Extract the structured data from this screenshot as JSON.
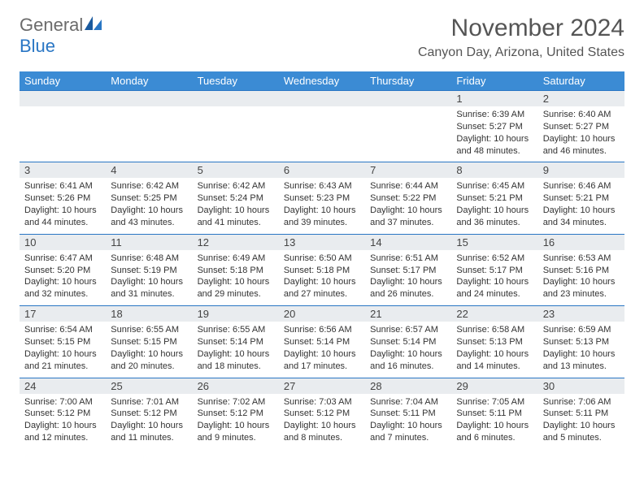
{
  "logo": {
    "word1": "General",
    "word2": "Blue"
  },
  "title": "November 2024",
  "location": "Canyon Day, Arizona, United States",
  "colors": {
    "header_bg": "#3b8bd4",
    "border": "#2976c4",
    "daynum_bg": "#e9ecef",
    "text": "#333333",
    "title_text": "#555555"
  },
  "weekdays": [
    "Sunday",
    "Monday",
    "Tuesday",
    "Wednesday",
    "Thursday",
    "Friday",
    "Saturday"
  ],
  "weeks": [
    [
      {
        "num": "",
        "sunrise": "",
        "sunset": "",
        "daylight": ""
      },
      {
        "num": "",
        "sunrise": "",
        "sunset": "",
        "daylight": ""
      },
      {
        "num": "",
        "sunrise": "",
        "sunset": "",
        "daylight": ""
      },
      {
        "num": "",
        "sunrise": "",
        "sunset": "",
        "daylight": ""
      },
      {
        "num": "",
        "sunrise": "",
        "sunset": "",
        "daylight": ""
      },
      {
        "num": "1",
        "sunrise": "Sunrise: 6:39 AM",
        "sunset": "Sunset: 5:27 PM",
        "daylight": "Daylight: 10 hours and 48 minutes."
      },
      {
        "num": "2",
        "sunrise": "Sunrise: 6:40 AM",
        "sunset": "Sunset: 5:27 PM",
        "daylight": "Daylight: 10 hours and 46 minutes."
      }
    ],
    [
      {
        "num": "3",
        "sunrise": "Sunrise: 6:41 AM",
        "sunset": "Sunset: 5:26 PM",
        "daylight": "Daylight: 10 hours and 44 minutes."
      },
      {
        "num": "4",
        "sunrise": "Sunrise: 6:42 AM",
        "sunset": "Sunset: 5:25 PM",
        "daylight": "Daylight: 10 hours and 43 minutes."
      },
      {
        "num": "5",
        "sunrise": "Sunrise: 6:42 AM",
        "sunset": "Sunset: 5:24 PM",
        "daylight": "Daylight: 10 hours and 41 minutes."
      },
      {
        "num": "6",
        "sunrise": "Sunrise: 6:43 AM",
        "sunset": "Sunset: 5:23 PM",
        "daylight": "Daylight: 10 hours and 39 minutes."
      },
      {
        "num": "7",
        "sunrise": "Sunrise: 6:44 AM",
        "sunset": "Sunset: 5:22 PM",
        "daylight": "Daylight: 10 hours and 37 minutes."
      },
      {
        "num": "8",
        "sunrise": "Sunrise: 6:45 AM",
        "sunset": "Sunset: 5:21 PM",
        "daylight": "Daylight: 10 hours and 36 minutes."
      },
      {
        "num": "9",
        "sunrise": "Sunrise: 6:46 AM",
        "sunset": "Sunset: 5:21 PM",
        "daylight": "Daylight: 10 hours and 34 minutes."
      }
    ],
    [
      {
        "num": "10",
        "sunrise": "Sunrise: 6:47 AM",
        "sunset": "Sunset: 5:20 PM",
        "daylight": "Daylight: 10 hours and 32 minutes."
      },
      {
        "num": "11",
        "sunrise": "Sunrise: 6:48 AM",
        "sunset": "Sunset: 5:19 PM",
        "daylight": "Daylight: 10 hours and 31 minutes."
      },
      {
        "num": "12",
        "sunrise": "Sunrise: 6:49 AM",
        "sunset": "Sunset: 5:18 PM",
        "daylight": "Daylight: 10 hours and 29 minutes."
      },
      {
        "num": "13",
        "sunrise": "Sunrise: 6:50 AM",
        "sunset": "Sunset: 5:18 PM",
        "daylight": "Daylight: 10 hours and 27 minutes."
      },
      {
        "num": "14",
        "sunrise": "Sunrise: 6:51 AM",
        "sunset": "Sunset: 5:17 PM",
        "daylight": "Daylight: 10 hours and 26 minutes."
      },
      {
        "num": "15",
        "sunrise": "Sunrise: 6:52 AM",
        "sunset": "Sunset: 5:17 PM",
        "daylight": "Daylight: 10 hours and 24 minutes."
      },
      {
        "num": "16",
        "sunrise": "Sunrise: 6:53 AM",
        "sunset": "Sunset: 5:16 PM",
        "daylight": "Daylight: 10 hours and 23 minutes."
      }
    ],
    [
      {
        "num": "17",
        "sunrise": "Sunrise: 6:54 AM",
        "sunset": "Sunset: 5:15 PM",
        "daylight": "Daylight: 10 hours and 21 minutes."
      },
      {
        "num": "18",
        "sunrise": "Sunrise: 6:55 AM",
        "sunset": "Sunset: 5:15 PM",
        "daylight": "Daylight: 10 hours and 20 minutes."
      },
      {
        "num": "19",
        "sunrise": "Sunrise: 6:55 AM",
        "sunset": "Sunset: 5:14 PM",
        "daylight": "Daylight: 10 hours and 18 minutes."
      },
      {
        "num": "20",
        "sunrise": "Sunrise: 6:56 AM",
        "sunset": "Sunset: 5:14 PM",
        "daylight": "Daylight: 10 hours and 17 minutes."
      },
      {
        "num": "21",
        "sunrise": "Sunrise: 6:57 AM",
        "sunset": "Sunset: 5:14 PM",
        "daylight": "Daylight: 10 hours and 16 minutes."
      },
      {
        "num": "22",
        "sunrise": "Sunrise: 6:58 AM",
        "sunset": "Sunset: 5:13 PM",
        "daylight": "Daylight: 10 hours and 14 minutes."
      },
      {
        "num": "23",
        "sunrise": "Sunrise: 6:59 AM",
        "sunset": "Sunset: 5:13 PM",
        "daylight": "Daylight: 10 hours and 13 minutes."
      }
    ],
    [
      {
        "num": "24",
        "sunrise": "Sunrise: 7:00 AM",
        "sunset": "Sunset: 5:12 PM",
        "daylight": "Daylight: 10 hours and 12 minutes."
      },
      {
        "num": "25",
        "sunrise": "Sunrise: 7:01 AM",
        "sunset": "Sunset: 5:12 PM",
        "daylight": "Daylight: 10 hours and 11 minutes."
      },
      {
        "num": "26",
        "sunrise": "Sunrise: 7:02 AM",
        "sunset": "Sunset: 5:12 PM",
        "daylight": "Daylight: 10 hours and 9 minutes."
      },
      {
        "num": "27",
        "sunrise": "Sunrise: 7:03 AM",
        "sunset": "Sunset: 5:12 PM",
        "daylight": "Daylight: 10 hours and 8 minutes."
      },
      {
        "num": "28",
        "sunrise": "Sunrise: 7:04 AM",
        "sunset": "Sunset: 5:11 PM",
        "daylight": "Daylight: 10 hours and 7 minutes."
      },
      {
        "num": "29",
        "sunrise": "Sunrise: 7:05 AM",
        "sunset": "Sunset: 5:11 PM",
        "daylight": "Daylight: 10 hours and 6 minutes."
      },
      {
        "num": "30",
        "sunrise": "Sunrise: 7:06 AM",
        "sunset": "Sunset: 5:11 PM",
        "daylight": "Daylight: 10 hours and 5 minutes."
      }
    ]
  ]
}
